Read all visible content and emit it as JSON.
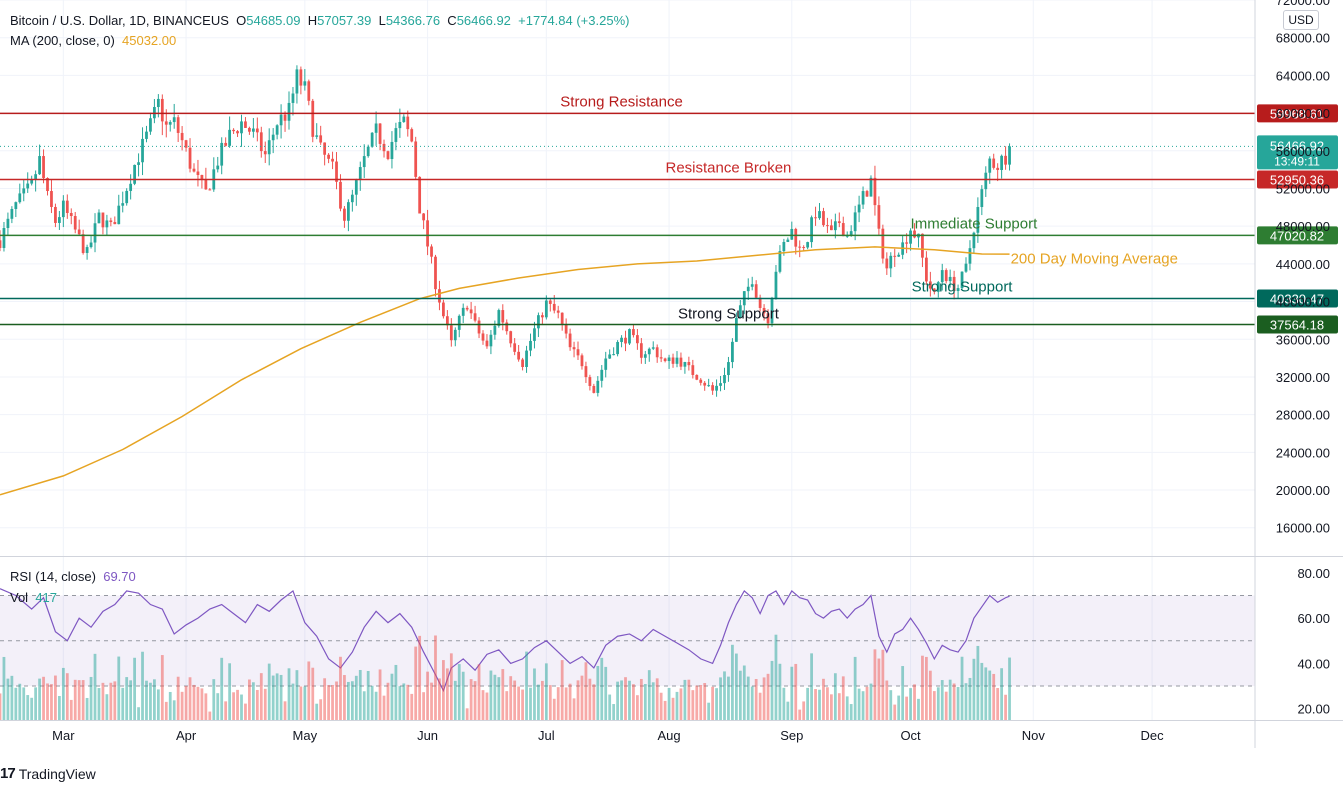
{
  "header": {
    "symbol": "Bitcoin / U.S. Dollar, 1D, BINANCEUS",
    "open_label": "O",
    "open": "54685.09",
    "high_label": "H",
    "high": "57057.39",
    "low_label": "L",
    "low": "54366.76",
    "close_label": "C",
    "close": "56466.92",
    "change": "+1774.84 (+3.25%)",
    "ma_label": "MA (200, close, 0)",
    "ma_value": "45032.00"
  },
  "rsi_legend": {
    "label": "RSI (14, close)",
    "value": "69.70"
  },
  "vol_legend": {
    "label": "Vol",
    "value": "417"
  },
  "currency": "USD",
  "brand": "TradingView",
  "colors": {
    "up": "#26a69a",
    "down": "#ef5350",
    "ma": "#e6a423",
    "rsi": "#7e57c2",
    "resistance": "#b71c1c",
    "broken": "#c62828",
    "immediate": "#2e7d32",
    "support1": "#00695c",
    "support2": "#1b5e20"
  },
  "chart_data": {
    "type": "candlestick",
    "price_axis": {
      "ticks": [
        "72000.00",
        "68000.00",
        "64000.00",
        "60000.00",
        "56000.00",
        "52000.00",
        "48000.00",
        "44000.00",
        "40000.00",
        "36000.00",
        "32000.00",
        "28000.00",
        "24000.00",
        "20000.00",
        "16000.00"
      ],
      "tick_values": [
        72000,
        68000,
        64000,
        60000,
        56000,
        52000,
        48000,
        44000,
        40000,
        36000,
        32000,
        28000,
        24000,
        20000,
        16000
      ],
      "ylim": [
        13000,
        72000
      ]
    },
    "rsi_axis": {
      "ticks": [
        "80.00",
        "60.00",
        "40.00",
        "20.00"
      ],
      "tick_values": [
        80,
        60,
        40,
        20
      ],
      "ylim": [
        15,
        87
      ],
      "upper_band": 70,
      "middle": 50,
      "lower_band": 30
    },
    "x_axis": {
      "labels": [
        "Mar",
        "Apr",
        "May",
        "Jun",
        "Jul",
        "Aug",
        "Sep",
        "Oct",
        "Nov",
        "Dec"
      ],
      "label_days": [
        0,
        31,
        61,
        92,
        122,
        153,
        184,
        214,
        245,
        275
      ],
      "start_date": "2021-02-16",
      "xlim": [
        -16,
        301
      ]
    },
    "current": {
      "price_label": "56466.92",
      "countdown": "13:49:11",
      "value": 56466.92
    },
    "levels": [
      {
        "name": "Strong Resistance",
        "label": "Strong Resistance",
        "value_label": "59968.61",
        "value": 59968.61,
        "color": "#b71c1c",
        "label_day": 141
      },
      {
        "name": "Resistance Broken",
        "label": "Resistance Broken",
        "value_label": "52950.36",
        "value": 52950.36,
        "color": "#c62828",
        "label_day": 168
      },
      {
        "name": "Immediate Support",
        "label": "Immediate Support",
        "value_label": "47020.82",
        "value": 47020.82,
        "color": "#2e7d32",
        "label_day": 230
      },
      {
        "name": "Strong Support",
        "label": "Strong Support",
        "value_label": "40330.47",
        "value": 40330.47,
        "color": "#00695c",
        "label_day": 227
      },
      {
        "name": "Strong Support",
        "label": "Strong Support",
        "value_label": "37564.18",
        "value": 37564.18,
        "color": "#1b5e20",
        "label_day": 168
      }
    ],
    "ma_annotation": {
      "label": "200 Day Moving Average",
      "label_day": 238,
      "value": 44700
    },
    "price_close": [
      [
        -16,
        46500
      ],
      [
        -12,
        50200
      ],
      [
        -8,
        52300
      ],
      [
        -6,
        55000
      ],
      [
        -4,
        51000
      ],
      [
        -2,
        48500
      ],
      [
        0,
        50000
      ],
      [
        3,
        47500
      ],
      [
        6,
        45000
      ],
      [
        9,
        49000
      ],
      [
        12,
        47800
      ],
      [
        15,
        51000
      ],
      [
        18,
        54500
      ],
      [
        21,
        57500
      ],
      [
        24,
        61000
      ],
      [
        26,
        58500
      ],
      [
        28,
        59000
      ],
      [
        30,
        57000
      ],
      [
        33,
        53500
      ],
      [
        36,
        51500
      ],
      [
        39,
        55000
      ],
      [
        42,
        57600
      ],
      [
        45,
        59000
      ],
      [
        48,
        57800
      ],
      [
        51,
        55500
      ],
      [
        54,
        59000
      ],
      [
        57,
        60200
      ],
      [
        59,
        63800
      ],
      [
        61,
        62500
      ],
      [
        63,
        58500
      ],
      [
        65,
        56000
      ],
      [
        68,
        54000
      ],
      [
        71,
        49000
      ],
      [
        73,
        51000
      ],
      [
        76,
        55000
      ],
      [
        79,
        58000
      ],
      [
        82,
        56000
      ],
      [
        84,
        58000
      ],
      [
        86,
        59000
      ],
      [
        88,
        57000
      ],
      [
        90,
        50000
      ],
      [
        92,
        46000
      ],
      [
        94,
        42000
      ],
      [
        96,
        38500
      ],
      [
        98,
        35500
      ],
      [
        100,
        38000
      ],
      [
        102,
        39800
      ],
      [
        104,
        37500
      ],
      [
        107,
        35000
      ],
      [
        110,
        39000
      ],
      [
        113,
        36000
      ],
      [
        116,
        33500
      ],
      [
        119,
        37000
      ],
      [
        122,
        39800
      ],
      [
        125,
        38500
      ],
      [
        128,
        35000
      ],
      [
        131,
        33500
      ],
      [
        134,
        30500
      ],
      [
        137,
        34000
      ],
      [
        140,
        35500
      ],
      [
        143,
        36500
      ],
      [
        146,
        34500
      ],
      [
        149,
        35000
      ],
      [
        152,
        33500
      ],
      [
        155,
        34000
      ],
      [
        158,
        32800
      ],
      [
        161,
        31800
      ],
      [
        164,
        30500
      ],
      [
        166,
        31500
      ],
      [
        168,
        33500
      ],
      [
        170,
        38000
      ],
      [
        172,
        40500
      ],
      [
        174,
        42500
      ],
      [
        176,
        39500
      ],
      [
        178,
        38300
      ],
      [
        180,
        43500
      ],
      [
        182,
        46000
      ],
      [
        184,
        47500
      ],
      [
        186,
        45500
      ],
      [
        188,
        46800
      ],
      [
        190,
        49500
      ],
      [
        192,
        48200
      ],
      [
        194,
        47000
      ],
      [
        196,
        48500
      ],
      [
        198,
        47000
      ],
      [
        200,
        49000
      ],
      [
        202,
        51000
      ],
      [
        204,
        52800
      ],
      [
        206,
        47000
      ],
      [
        208,
        43500
      ],
      [
        210,
        45500
      ],
      [
        212,
        46000
      ],
      [
        214,
        47800
      ],
      [
        216,
        46500
      ],
      [
        218,
        42500
      ],
      [
        220,
        40500
      ],
      [
        222,
        43500
      ],
      [
        224,
        42000
      ],
      [
        226,
        41500
      ],
      [
        228,
        43500
      ],
      [
        230,
        48000
      ],
      [
        232,
        51500
      ],
      [
        234,
        55000
      ],
      [
        236,
        54500
      ],
      [
        238,
        55500
      ],
      [
        239,
        56466.92
      ]
    ],
    "ma200": [
      [
        -16,
        19500
      ],
      [
        0,
        21500
      ],
      [
        15,
        24300
      ],
      [
        30,
        27800
      ],
      [
        45,
        31700
      ],
      [
        60,
        35000
      ],
      [
        75,
        37800
      ],
      [
        90,
        40300
      ],
      [
        100,
        41400
      ],
      [
        115,
        42500
      ],
      [
        130,
        43400
      ],
      [
        145,
        44000
      ],
      [
        160,
        44300
      ],
      [
        175,
        44900
      ],
      [
        190,
        45500
      ],
      [
        205,
        45800
      ],
      [
        220,
        45500
      ],
      [
        232,
        45050
      ],
      [
        239,
        45032
      ]
    ],
    "rsi": [
      [
        -16,
        73
      ],
      [
        -12,
        70
      ],
      [
        -8,
        64
      ],
      [
        -5,
        69
      ],
      [
        -2,
        54
      ],
      [
        1,
        50
      ],
      [
        4,
        60
      ],
      [
        7,
        56
      ],
      [
        10,
        63
      ],
      [
        13,
        66
      ],
      [
        16,
        72
      ],
      [
        19,
        71
      ],
      [
        22,
        66
      ],
      [
        25,
        64
      ],
      [
        28,
        53
      ],
      [
        31,
        57
      ],
      [
        34,
        60
      ],
      [
        37,
        64
      ],
      [
        40,
        66
      ],
      [
        43,
        62
      ],
      [
        46,
        58
      ],
      [
        49,
        66
      ],
      [
        52,
        63
      ],
      [
        55,
        68
      ],
      [
        58,
        72
      ],
      [
        61,
        58
      ],
      [
        64,
        52
      ],
      [
        67,
        42
      ],
      [
        70,
        38
      ],
      [
        73,
        45
      ],
      [
        76,
        56
      ],
      [
        79,
        63
      ],
      [
        82,
        58
      ],
      [
        85,
        62
      ],
      [
        88,
        56
      ],
      [
        91,
        45
      ],
      [
        94,
        35
      ],
      [
        96,
        28
      ],
      [
        98,
        38
      ],
      [
        101,
        42
      ],
      [
        104,
        37
      ],
      [
        107,
        44
      ],
      [
        110,
        46
      ],
      [
        113,
        40
      ],
      [
        116,
        42
      ],
      [
        119,
        47
      ],
      [
        122,
        50
      ],
      [
        125,
        45
      ],
      [
        128,
        40
      ],
      [
        131,
        43
      ],
      [
        134,
        38
      ],
      [
        137,
        48
      ],
      [
        140,
        52
      ],
      [
        143,
        53
      ],
      [
        146,
        50
      ],
      [
        149,
        55
      ],
      [
        152,
        52
      ],
      [
        155,
        49
      ],
      [
        158,
        46
      ],
      [
        161,
        42
      ],
      [
        164,
        40
      ],
      [
        166,
        48
      ],
      [
        168,
        58
      ],
      [
        170,
        66
      ],
      [
        172,
        72
      ],
      [
        174,
        69
      ],
      [
        176,
        62
      ],
      [
        178,
        70
      ],
      [
        180,
        72
      ],
      [
        182,
        66
      ],
      [
        184,
        72
      ],
      [
        186,
        69
      ],
      [
        188,
        68
      ],
      [
        190,
        62
      ],
      [
        192,
        60
      ],
      [
        194,
        63
      ],
      [
        196,
        64
      ],
      [
        198,
        60
      ],
      [
        200,
        64
      ],
      [
        202,
        66
      ],
      [
        204,
        70
      ],
      [
        206,
        52
      ],
      [
        208,
        45
      ],
      [
        210,
        53
      ],
      [
        212,
        55
      ],
      [
        214,
        60
      ],
      [
        216,
        55
      ],
      [
        218,
        49
      ],
      [
        220,
        42
      ],
      [
        222,
        48
      ],
      [
        224,
        46
      ],
      [
        226,
        45
      ],
      [
        228,
        50
      ],
      [
        230,
        60
      ],
      [
        232,
        65
      ],
      [
        234,
        70
      ],
      [
        236,
        67
      ],
      [
        238,
        69
      ],
      [
        239,
        69.7
      ]
    ],
    "volume_ylim": [
      0,
      30000
    ]
  }
}
